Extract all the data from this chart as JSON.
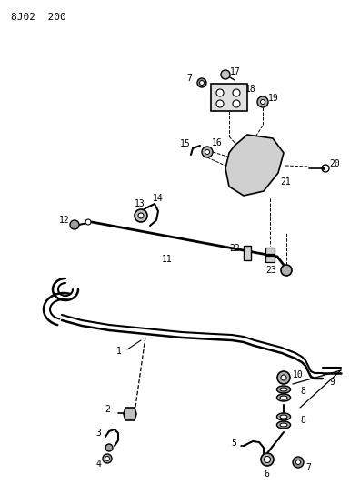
{
  "title": "8J02  200",
  "bg_color": "#ffffff",
  "line_color": "#000000",
  "text_color": "#000000",
  "fig_width": 3.96,
  "fig_height": 5.33,
  "dpi": 100,
  "title_fontsize": 8,
  "label_fontsize": 7
}
